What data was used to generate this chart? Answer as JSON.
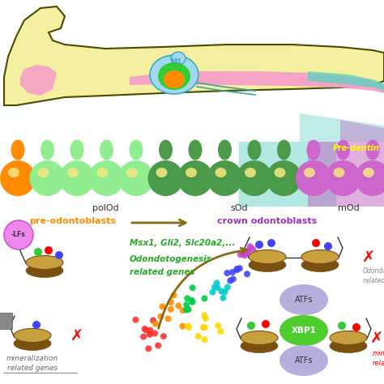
{
  "bg_color": "#ffffff",
  "jaw_color": "#f5f0a0",
  "jaw_outline": "#4a4a00",
  "pink_layer": "#f5a0c8",
  "orange_blob": "#ff8c00",
  "green_blob": "#32cd32",
  "light_blue_blob": "#a8d8e8",
  "teal_color": "#40c8b8",
  "predentin_teal": "#70d8d0",
  "predentin_purple": "#c060c0",
  "label_polod": "polOd",
  "label_sod": "sOd",
  "label_mod": "mOd",
  "label_preodonto": "pre-odontoblasts",
  "label_crown": "crown odontoblasts",
  "label_predentin": "Pre-dentin",
  "arrow_color": "#8b6914",
  "msx_text": "Msx1, Gli2, Slc20a2,...",
  "odonto_text1": "Odondotogenesis",
  "odonto_text2": "related genes",
  "mineral_text1": "mineralization",
  "mineral_text2": "related genes",
  "atfs_text": "ATFs",
  "xbp1_text": "XBP1",
  "odondot_text1": "Odondot.",
  "odondot_text2": "related g",
  "min_text1": "min",
  "min_text2": "rela",
  "nucleosome_color": "#c8a040",
  "nucleosome_dark": "#7a5010",
  "m1_text": "M1",
  "cell_colors": [
    "#ff8c00",
    "#90ee90",
    "#90ee90",
    "#90ee90",
    "#90ee90",
    "#4a9a4a",
    "#4a9a4a",
    "#4a9a4a",
    "#4a9a4a",
    "#4a9a4a",
    "#cc66cc",
    "#cc66cc",
    "#cc66cc"
  ],
  "lfs_color": "#cc44cc"
}
